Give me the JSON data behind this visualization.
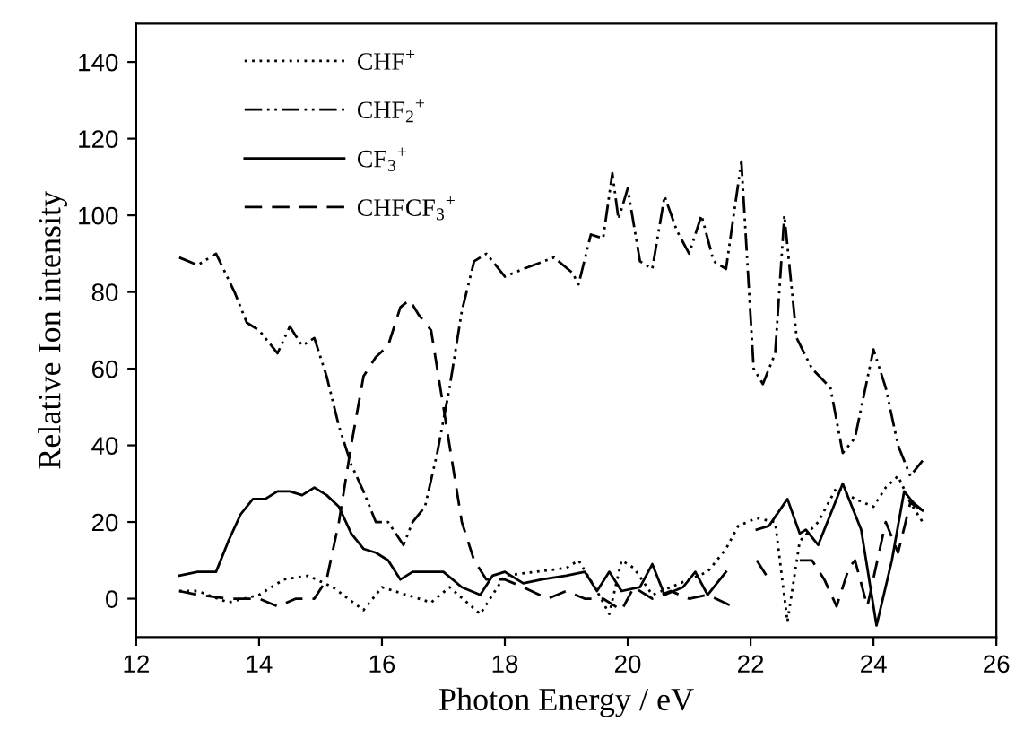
{
  "chart_data": {
    "type": "line",
    "xlabel": "Photon Energy / eV",
    "ylabel": "Relative Ion intensity",
    "xlim": [
      12,
      26
    ],
    "xticks": [
      12,
      14,
      16,
      18,
      20,
      22,
      24,
      26
    ],
    "ylim": [
      -10,
      150
    ],
    "yticks": [
      0,
      20,
      40,
      60,
      80,
      100,
      120,
      140
    ],
    "grid": false,
    "legend": "top left",
    "marker": "none",
    "series": [
      {
        "name": "CHF$^{+}$",
        "color": "#000000",
        "line_style": "dotted",
        "x": [
          12.7,
          13,
          13.5,
          14,
          14.4,
          14.8,
          15.2,
          15.7,
          16.0,
          16.4,
          16.8,
          17.1,
          17.6,
          18.0,
          18.5,
          19.0,
          19.2,
          19.5,
          19.7,
          19.9,
          20.1,
          20.4,
          20.7,
          21.0,
          21.3,
          21.6,
          21.8,
          22.1,
          22.4,
          22.6,
          22.8,
          23.1,
          23.4,
          23.7,
          24.0,
          24.2,
          24.4,
          24.6,
          24.8
        ],
        "values": [
          2,
          2,
          -1,
          1,
          5,
          6,
          3,
          -3,
          3,
          1,
          -1,
          3,
          -4,
          6,
          7,
          8,
          10,
          2,
          -4,
          10,
          8,
          1,
          3,
          5,
          7,
          13,
          19,
          21,
          20,
          -6,
          15,
          20,
          29,
          26,
          24,
          29,
          32,
          25,
          20
        ]
      },
      {
        "name": "CHF$_{2}$$^{+}$",
        "color": "#000000",
        "line_style": "dashdotdot",
        "x": [
          12.7,
          13,
          13.3,
          13.6,
          13.8,
          14,
          14.3,
          14.5,
          14.7,
          14.9,
          15.1,
          15.3,
          15.5,
          15.7,
          15.9,
          16.1,
          16.35,
          16.5,
          16.7,
          16.9,
          17.1,
          17.3,
          17.5,
          17.7,
          18.0,
          18.3,
          18.8,
          19.1,
          19.2,
          19.4,
          19.6,
          19.75,
          19.85,
          20.0,
          20.2,
          20.4,
          20.6,
          20.8,
          21.0,
          21.2,
          21.4,
          21.6,
          21.85,
          22.05,
          22.2,
          22.4,
          22.55,
          22.75,
          23.0,
          23.3,
          23.5,
          23.7,
          24.0,
          24.2,
          24.4,
          24.6,
          24.8
        ],
        "values": [
          89,
          87,
          90,
          80,
          72,
          70,
          64,
          71,
          66,
          68,
          58,
          45,
          35,
          28,
          20,
          20,
          14,
          20,
          24,
          38,
          55,
          75,
          88,
          90,
          84,
          86,
          89,
          85,
          82,
          95,
          94,
          111,
          99,
          107,
          88,
          86,
          105,
          96,
          90,
          100,
          88,
          86,
          114,
          60,
          56,
          64,
          100,
          68,
          60,
          55,
          38,
          42,
          65,
          55,
          40,
          32,
          36
        ]
      },
      {
        "name": "CF$_{3}$$^{+}$",
        "color": "#000000",
        "line_style": "solid",
        "x": [
          12.7,
          13,
          13.3,
          13.5,
          13.7,
          13.9,
          14.1,
          14.3,
          14.5,
          14.7,
          14.9,
          15.1,
          15.3,
          15.5,
          15.7,
          15.9,
          16.1,
          16.3,
          16.5,
          16.7,
          17.0,
          17.3,
          17.6,
          17.8,
          18.0,
          18.3,
          18.6,
          19.0,
          19.3,
          19.5,
          19.7,
          19.9,
          20.2,
          20.4,
          20.6,
          20.9,
          21.1,
          21.3,
          21.6,
          21.85,
          22.1,
          22.3,
          22.6,
          22.8,
          22.9,
          23.1,
          23.5,
          23.8,
          24.05,
          24.3,
          24.5,
          24.65,
          24.8
        ],
        "values": [
          6,
          7,
          7,
          15,
          22,
          26,
          26,
          28,
          28,
          27,
          29,
          27,
          24,
          17,
          13,
          12,
          10,
          5,
          7,
          7,
          7,
          3,
          1,
          6,
          7,
          4,
          5,
          6,
          7,
          2,
          7,
          2,
          3,
          9,
          1,
          3,
          7,
          1,
          7,
          null,
          18,
          19,
          26,
          17,
          18,
          14,
          30,
          18,
          -7,
          10,
          28,
          25,
          23
        ]
      },
      {
        "name": "CHFCF$_{3}$$^{+}$",
        "color": "#000000",
        "line_style": "dashed",
        "x": [
          12.7,
          13,
          13.5,
          14,
          14.3,
          14.6,
          14.9,
          15.1,
          15.3,
          15.5,
          15.7,
          15.9,
          16.1,
          16.3,
          16.45,
          16.6,
          16.8,
          16.95,
          17.1,
          17.3,
          17.5,
          17.7,
          18.0,
          18.3,
          18.7,
          19.0,
          19.3,
          19.6,
          19.9,
          20.1,
          20.4,
          20.7,
          21.0,
          21.3,
          21.7,
          21.9,
          22.1,
          22.3,
          22.5,
          22.8,
          23.0,
          23.2,
          23.4,
          23.6,
          23.7,
          23.9,
          24.2,
          24.4,
          24.6,
          24.8
        ],
        "values": [
          2,
          1,
          0,
          0,
          -2,
          0,
          0,
          5,
          20,
          40,
          58,
          63,
          66,
          76,
          78,
          74,
          70,
          55,
          40,
          20,
          10,
          5,
          5,
          3,
          0,
          2,
          0,
          0,
          -3,
          3,
          0,
          2,
          0,
          1,
          -2,
          null,
          10,
          5,
          null,
          10,
          10,
          5,
          -2,
          8,
          10,
          -2,
          20,
          12,
          25,
          23
        ]
      }
    ]
  }
}
